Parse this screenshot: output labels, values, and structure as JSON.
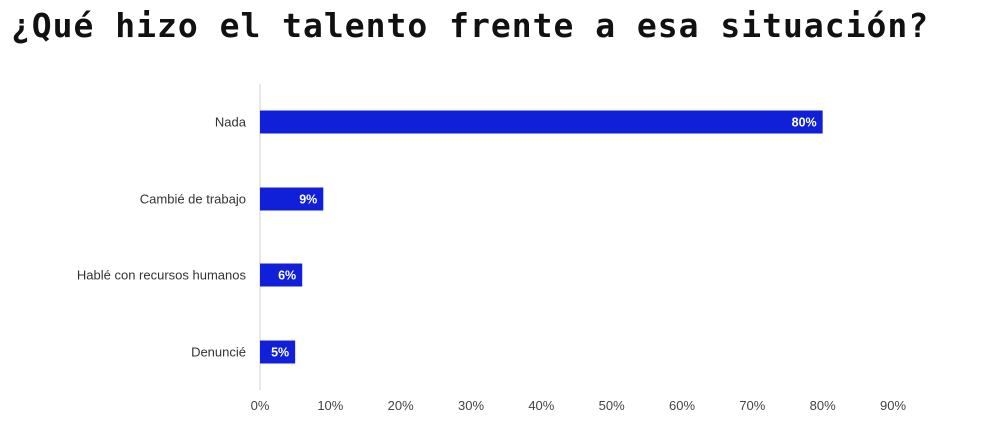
{
  "chart_data": {
    "type": "bar",
    "orientation": "horizontal",
    "title": "¿Qué hizo el talento frente a esa situación?",
    "categories": [
      "Nada",
      "Cambié de trabajo",
      "Hablé con recursos humanos",
      "Denuncié"
    ],
    "values": [
      80,
      9,
      6,
      5
    ],
    "data_labels": [
      "80%",
      "9%",
      "6%",
      "5%"
    ],
    "xlim": [
      0,
      90
    ],
    "xticks": [
      0,
      10,
      20,
      30,
      40,
      50,
      60,
      70,
      80,
      90
    ],
    "xtick_labels": [
      "0%",
      "10%",
      "20%",
      "30%",
      "40%",
      "50%",
      "60%",
      "70%",
      "80%",
      "90%"
    ],
    "grid": false,
    "legend": "none",
    "bar_color": "#1020d8"
  }
}
